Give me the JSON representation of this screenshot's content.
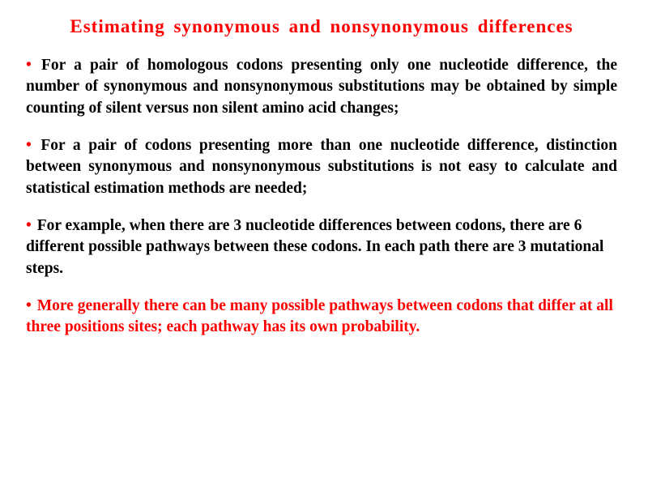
{
  "colors": {
    "red": "#ff0000",
    "black": "#000000"
  },
  "title": "Estimating  synonymous  and  nonsynonymous  differences",
  "paragraphs": [
    {
      "bullet_color": "#ff0000",
      "text_color": "#000000",
      "align": "justify",
      "text": "For a pair of homologous codons presenting only one nucleotide difference, the number of synonymous and nonsynonymous substitutions may be obtained by simple counting of silent versus non silent amino acid changes;"
    },
    {
      "bullet_color": "#ff0000",
      "text_color": "#000000",
      "align": "justify",
      "text": "For a pair of codons presenting more than one nucleotide difference, distinction between synonymous and nonsynonymous substitutions is not easy to calculate and statistical estimation methods are needed;"
    },
    {
      "bullet_color": "#ff0000",
      "text_color": "#000000",
      "align": "left",
      "text": "For example, when there are 3 nucleotide differences between codons, there are 6 different possible pathways between these codons. In each path there are 3 mutational steps."
    },
    {
      "bullet_color": "#ff0000",
      "text_color": "#ff0000",
      "align": "left",
      "text": "More generally there can be many possible pathways between codons that differ at all three positions sites; each pathway has its own probability."
    }
  ]
}
